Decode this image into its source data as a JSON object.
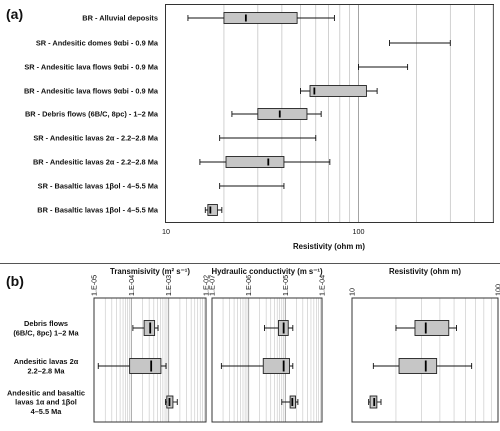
{
  "chart_data": [
    {
      "type": "boxplot",
      "panel_label": "(a)",
      "xlabel": "Resistivity (ohm m)",
      "xscale": "log",
      "xlim": [
        10,
        500
      ],
      "xticks": [
        "10",
        "100"
      ],
      "categories": [
        "BR - Alluvial deposits",
        "SR - Andesitic domes 9αbi - 0.9 Ma",
        "SR - Andesitic lava flows 9αbi - 0.9 Ma",
        "BR - Andesitic lava flows 9αbi - 0.9 Ma",
        "BR - Debris flows (6B/C, 8pc) - 1–2 Ma",
        "SR - Andesitic lavas 2α - 2.2–2.8 Ma",
        "BR - Andesitic lavas 2α - 2.2–2.8 Ma",
        "SR - Basaltic lavas 1βol - 4–5.5 Ma",
        "BR - Basaltic lavas 1βol - 4–5.5 Ma"
      ],
      "boxes": [
        {
          "min": 13,
          "q1": 20,
          "median": 26,
          "q3": 48,
          "max": 75
        },
        {
          "min": 145,
          "max": 300
        },
        {
          "min": 100,
          "max": 180
        },
        {
          "min": 50,
          "q1": 56,
          "median": 59,
          "q3": 110,
          "max": 125
        },
        {
          "min": 22,
          "q1": 30,
          "median": 39,
          "q3": 54,
          "max": 64
        },
        {
          "min": 19,
          "max": 60
        },
        {
          "min": 15,
          "q1": 20.5,
          "median": 34,
          "q3": 41,
          "max": 71
        },
        {
          "min": 19,
          "max": 41
        },
        {
          "min": 16,
          "q1": 16.5,
          "median": 17,
          "q3": 18.5,
          "max": 19.5
        }
      ],
      "style": {
        "box_color": "#c6c6c6",
        "grid": true
      }
    },
    {
      "type": "boxplot",
      "panel_label": "(b)",
      "categories": [
        "Debris flows (6B/C, 8pc) 1–2 Ma",
        "Andesitic lavas 2α 2.2–2.8 Ma",
        "Andesitic and basaltic lavas 1α and 1βol 4–5.5 Ma"
      ],
      "category_lines": [
        [
          "Debris flows",
          "(6B/C, 8pc) 1–2 Ma"
        ],
        [
          "Andesitic lavas 2α",
          "2.2–2.8 Ma"
        ],
        [
          "Andesitic and basaltic",
          "lavas 1α and 1βol",
          "4–5.5 Ma"
        ]
      ],
      "subplots": [
        {
          "title": "Transmisivity (m² s⁻¹)",
          "xscale": "log",
          "xlim": [
            1e-05,
            0.01
          ],
          "xticks": [
            "1.E-05",
            "1.E-04",
            "1.E-03",
            "1.E-02"
          ],
          "boxes": [
            {
              "min": 0.00011,
              "q1": 0.00022,
              "median": 0.00032,
              "q3": 0.00042,
              "max": 0.00052
            },
            {
              "min": 1.3e-05,
              "q1": 9e-05,
              "median": 0.00034,
              "q3": 0.00062,
              "max": 0.00085
            },
            {
              "min": 0.00082,
              "q1": 0.00089,
              "median": 0.00105,
              "q3": 0.0013,
              "max": 0.0017
            }
          ]
        },
        {
          "title": "Hydraulic conductivity (m s⁻¹)",
          "xscale": "log",
          "xlim": [
            1e-07,
            0.0001
          ],
          "xticks": [
            "1.E-07",
            "1.E-06",
            "1.E-05",
            "1.E-04"
          ],
          "boxes": [
            {
              "min": 2.7e-06,
              "q1": 6.5e-06,
              "median": 9e-06,
              "q3": 1.2e-05,
              "max": 1.6e-05
            },
            {
              "min": 1.8e-07,
              "q1": 2.5e-06,
              "median": 9e-06,
              "q3": 1.3e-05,
              "max": 1.6e-05
            },
            {
              "min": 8e-06,
              "q1": 1.35e-05,
              "median": 1.55e-05,
              "q3": 1.9e-05,
              "max": 2.2e-05
            }
          ]
        },
        {
          "title": "Resistivity (ohm m)",
          "xscale": "log",
          "xlim": [
            10,
            100
          ],
          "xticks": [
            "10",
            "100"
          ],
          "boxes": [
            {
              "min": 20,
              "q1": 27,
              "median": 32,
              "q3": 46,
              "max": 52
            },
            {
              "min": 14,
              "q1": 21,
              "median": 32,
              "q3": 38,
              "max": 66
            },
            {
              "min": 13,
              "q1": 13.3,
              "median": 14.2,
              "q3": 14.8,
              "max": 15.8
            }
          ]
        }
      ],
      "style": {
        "box_color": "#c6c6c6",
        "grid": true
      }
    }
  ]
}
